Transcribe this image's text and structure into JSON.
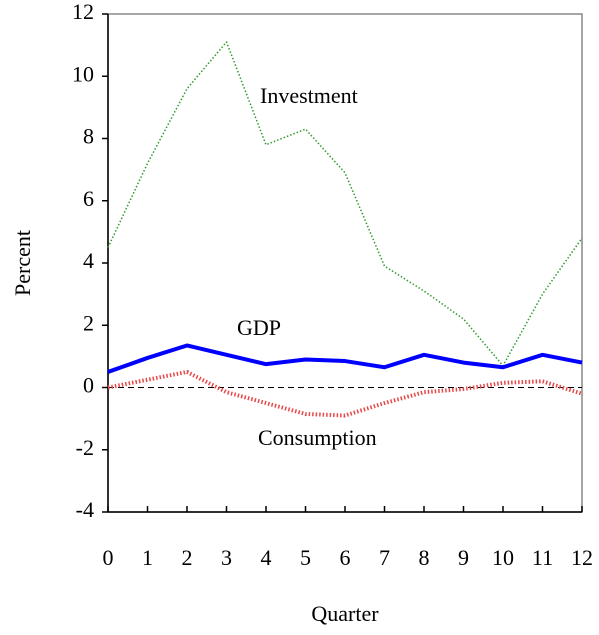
{
  "chart_data": {
    "type": "line",
    "x_label": "Quarter",
    "y_label": "Percent",
    "x": [
      0,
      1,
      2,
      3,
      4,
      5,
      6,
      7,
      8,
      9,
      10,
      11,
      12
    ],
    "xlim": [
      0,
      12
    ],
    "xticks": [
      0,
      1,
      2,
      3,
      4,
      5,
      6,
      7,
      8,
      9,
      10,
      11,
      12
    ],
    "ylim": [
      -4,
      12
    ],
    "yticks": [
      -4,
      -2,
      0,
      2,
      4,
      6,
      8,
      10,
      12
    ],
    "hline": 0,
    "series": [
      {
        "name": "Investment",
        "color": "#2e9a2e",
        "style": "dotted",
        "width": 1.5,
        "values": [
          4.5,
          7.2,
          9.6,
          11.1,
          7.8,
          8.3,
          6.9,
          3.9,
          3.1,
          2.2,
          0.7,
          3.0,
          4.8
        ]
      },
      {
        "name": "GDP",
        "color": "#0000ff",
        "style": "solid",
        "width": 4,
        "values": [
          0.5,
          0.95,
          1.35,
          1.05,
          0.75,
          0.9,
          0.85,
          0.65,
          1.05,
          0.8,
          0.65,
          1.05,
          0.8
        ]
      },
      {
        "name": "Consumption",
        "color": "#e84848",
        "style": "dotted",
        "width": 4,
        "values": [
          0.0,
          0.25,
          0.5,
          -0.15,
          -0.5,
          -0.85,
          -0.9,
          -0.5,
          -0.15,
          -0.05,
          0.15,
          0.2,
          -0.2
        ]
      }
    ]
  }
}
